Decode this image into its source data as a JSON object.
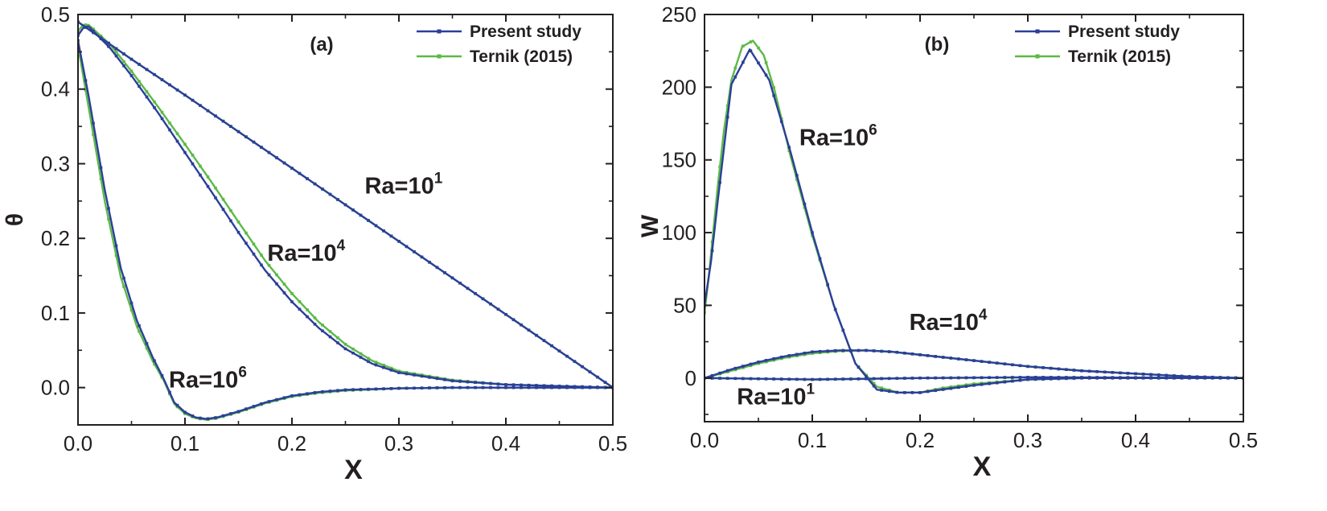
{
  "chart_data": [
    {
      "type": "line",
      "panel_label": "(a)",
      "xlabel": "X",
      "ylabel": "θ",
      "xlim": [
        0.0,
        0.5
      ],
      "ylim": [
        -0.05,
        0.5
      ],
      "x_ticks": [
        "0.0",
        "0.1",
        "0.2",
        "0.3",
        "0.4",
        "0.5"
      ],
      "y_ticks": [
        "0.0",
        "0.1",
        "0.2",
        "0.3",
        "0.4",
        "0.5"
      ],
      "legend": [
        "Present study",
        "Ternik (2015)"
      ],
      "colors": {
        "present": "#2b3f99",
        "ternik": "#5cb946"
      },
      "annotations": [
        {
          "base": "Ra=10",
          "exp": "1",
          "at": [
            0.268,
            0.26
          ]
        },
        {
          "base": "Ra=10",
          "exp": "4",
          "at": [
            0.177,
            0.17
          ]
        },
        {
          "base": "Ra=10",
          "exp": "6",
          "at": [
            0.085,
            0.0
          ]
        }
      ],
      "series": [
        {
          "name": "Present study",
          "case": "Ra=10^1",
          "x": [
            0,
            0.05,
            0.1,
            0.15,
            0.2,
            0.25,
            0.3,
            0.35,
            0.4,
            0.45,
            0.5
          ],
          "y": [
            0.49,
            0.44,
            0.392,
            0.343,
            0.294,
            0.245,
            0.196,
            0.147,
            0.098,
            0.049,
            0.0
          ]
        },
        {
          "name": "Ternik (2015)",
          "case": "Ra=10^1",
          "x": [
            0,
            0.05,
            0.1,
            0.15,
            0.2,
            0.25,
            0.3,
            0.35,
            0.4,
            0.45,
            0.5
          ],
          "y": [
            0.49,
            0.44,
            0.392,
            0.343,
            0.294,
            0.245,
            0.196,
            0.147,
            0.098,
            0.049,
            0.0
          ]
        },
        {
          "name": "Present study",
          "case": "Ra=10^4",
          "x": [
            0,
            0.005,
            0.01,
            0.03,
            0.05,
            0.075,
            0.1,
            0.125,
            0.15,
            0.175,
            0.2,
            0.225,
            0.25,
            0.275,
            0.3,
            0.35,
            0.4,
            0.45,
            0.5
          ],
          "y": [
            0.472,
            0.482,
            0.484,
            0.455,
            0.418,
            0.368,
            0.315,
            0.262,
            0.208,
            0.157,
            0.115,
            0.08,
            0.052,
            0.032,
            0.02,
            0.009,
            0.004,
            0.002,
            0.0
          ]
        },
        {
          "name": "Ternik (2015)",
          "case": "Ra=10^4",
          "x": [
            0,
            0.005,
            0.01,
            0.03,
            0.05,
            0.075,
            0.1,
            0.125,
            0.15,
            0.175,
            0.2,
            0.225,
            0.25,
            0.275,
            0.3,
            0.35,
            0.4,
            0.45,
            0.5
          ],
          "y": [
            0.478,
            0.486,
            0.486,
            0.46,
            0.424,
            0.376,
            0.326,
            0.275,
            0.222,
            0.17,
            0.126,
            0.088,
            0.058,
            0.036,
            0.022,
            0.01,
            0.004,
            0.002,
            0.0
          ]
        },
        {
          "name": "Present study",
          "case": "Ra=10^6",
          "x": [
            0,
            0.01,
            0.025,
            0.04,
            0.055,
            0.07,
            0.08,
            0.09,
            0.1,
            0.11,
            0.12,
            0.13,
            0.15,
            0.175,
            0.2,
            0.225,
            0.25,
            0.3,
            0.35,
            0.4,
            0.45,
            0.5
          ],
          "y": [
            0.465,
            0.39,
            0.265,
            0.16,
            0.09,
            0.04,
            0.012,
            -0.02,
            -0.033,
            -0.04,
            -0.042,
            -0.04,
            -0.032,
            -0.02,
            -0.011,
            -0.006,
            -0.003,
            -0.001,
            0.0,
            0.0,
            0.0,
            0.0
          ]
        },
        {
          "name": "Ternik (2015)",
          "case": "Ra=10^6",
          "x": [
            0,
            0.01,
            0.025,
            0.04,
            0.055,
            0.07,
            0.08,
            0.09,
            0.1,
            0.11,
            0.12,
            0.13,
            0.15,
            0.175,
            0.2,
            0.225,
            0.25,
            0.3,
            0.35,
            0.4,
            0.45,
            0.5
          ],
          "y": [
            0.458,
            0.375,
            0.25,
            0.148,
            0.082,
            0.035,
            0.01,
            -0.022,
            -0.035,
            -0.041,
            -0.043,
            -0.041,
            -0.033,
            -0.021,
            -0.012,
            -0.007,
            -0.004,
            -0.001,
            0.0,
            0.0,
            0.0,
            0.0
          ]
        }
      ]
    },
    {
      "type": "line",
      "panel_label": "(b)",
      "xlabel": "X",
      "ylabel": "W",
      "xlim": [
        0.0,
        0.5
      ],
      "ylim": [
        -30,
        250
      ],
      "x_ticks": [
        "0.0",
        "0.1",
        "0.2",
        "0.3",
        "0.4",
        "0.5"
      ],
      "y_ticks": [
        "0",
        "50",
        "100",
        "150",
        "200",
        "250"
      ],
      "legend": [
        "Present study",
        "Ternik (2015)"
      ],
      "colors": {
        "present": "#2b3f99",
        "ternik": "#5cb946"
      },
      "annotations": [
        {
          "base": "Ra=10",
          "exp": "6",
          "at": [
            0.088,
            160
          ]
        },
        {
          "base": "Ra=10",
          "exp": "4",
          "at": [
            0.19,
            33
          ]
        },
        {
          "base": "Ra=10",
          "exp": "1",
          "at": [
            0.03,
            -18
          ]
        }
      ],
      "series": [
        {
          "name": "Present study",
          "case": "Ra=10^6",
          "x": [
            0,
            0.006,
            0.012,
            0.025,
            0.042,
            0.06,
            0.08,
            0.1,
            0.12,
            0.14,
            0.16,
            0.18,
            0.2,
            0.22,
            0.25,
            0.3,
            0.35,
            0.4,
            0.45,
            0.5
          ],
          "y": [
            50,
            80,
            120,
            202,
            226,
            205,
            155,
            100,
            50,
            10,
            -8,
            -10,
            -10,
            -8,
            -5,
            -1,
            0,
            0,
            0,
            0
          ]
        },
        {
          "name": "Ternik (2015)",
          "case": "Ra=10^6",
          "x": [
            0,
            0.004,
            0.008,
            0.012,
            0.018,
            0.025,
            0.035,
            0.045,
            0.055,
            0.065,
            0.08,
            0.1,
            0.12,
            0.14,
            0.16,
            0.18,
            0.2,
            0.22,
            0.25,
            0.3,
            0.35,
            0.4,
            0.45,
            0.5
          ],
          "y": [
            45,
            70,
            100,
            130,
            170,
            205,
            228,
            232,
            222,
            198,
            152,
            98,
            50,
            10,
            -6,
            -10,
            -10,
            -7,
            -4,
            -1,
            0,
            0,
            0,
            0
          ]
        },
        {
          "name": "Present study",
          "case": "Ra=10^4",
          "x": [
            0,
            0.025,
            0.05,
            0.075,
            0.1,
            0.125,
            0.15,
            0.175,
            0.2,
            0.25,
            0.3,
            0.35,
            0.4,
            0.45,
            0.5
          ],
          "y": [
            0,
            6,
            11,
            15,
            18,
            19,
            19,
            18,
            16,
            12,
            8,
            5,
            3,
            1,
            0
          ]
        },
        {
          "name": "Ternik (2015)",
          "case": "Ra=10^4",
          "x": [
            0,
            0.025,
            0.05,
            0.075,
            0.1,
            0.125,
            0.15,
            0.175,
            0.2,
            0.25,
            0.3,
            0.35,
            0.4,
            0.45,
            0.5
          ],
          "y": [
            0,
            5,
            10,
            14,
            17,
            18.5,
            19,
            18,
            16,
            12,
            8,
            5,
            3,
            1,
            0
          ]
        },
        {
          "name": "Present study",
          "case": "Ra=10^1",
          "x": [
            0,
            0.1,
            0.2,
            0.3,
            0.4,
            0.5
          ],
          "y": [
            0,
            -1,
            0,
            0.5,
            0.3,
            0
          ]
        },
        {
          "name": "Ternik (2015)",
          "case": "Ra=10^1",
          "x": [
            0,
            0.1,
            0.2,
            0.3,
            0.4,
            0.5
          ],
          "y": [
            0,
            -1,
            0,
            0.5,
            0.3,
            0
          ]
        }
      ]
    }
  ]
}
